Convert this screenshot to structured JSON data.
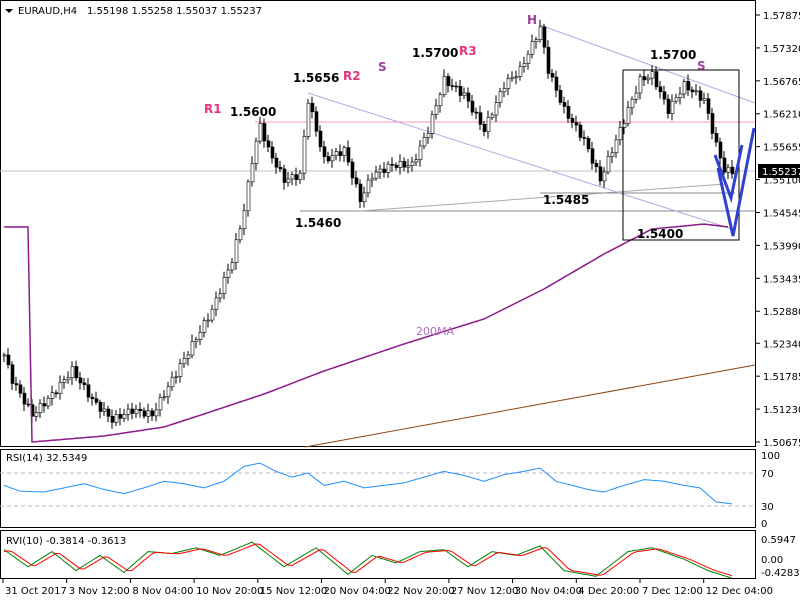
{
  "header": {
    "symbol": "EURAUD,H4",
    "ohlc": "1.55198 1.55258 1.55037 1.55237"
  },
  "rsi": {
    "label": "RSI(14) 32.5349",
    "levels": [
      "100",
      "70",
      "30",
      "0"
    ]
  },
  "rvi": {
    "label": "RVI(10) -0.3814 -0.3613",
    "levels": [
      "0.5947",
      "0.00",
      "-0.4283"
    ]
  },
  "annotations": {
    "r1": "R1",
    "p1": "1.5600",
    "p2": "1.5656",
    "r2": "R2",
    "s1": "S",
    "p3": "1.5700",
    "r3": "R3",
    "h": "H",
    "p4": "1.5700",
    "s2": "S",
    "p5": "1.5485",
    "p6": "1.5460",
    "p7": "1.5400",
    "ma": "200MA"
  },
  "colors": {
    "pink": "#e8337a",
    "purple": "#a040a0",
    "ma": "#8b1a8b",
    "blue": "#3040d0",
    "rsi": "#1e90ff",
    "rvi_main": "#008000",
    "rvi_signal": "#ff0000",
    "trend": "#8b4513"
  },
  "chart_data": {
    "type": "candlestick",
    "title": "EURAUD,H4",
    "current_price": "1.55237",
    "y_ticks": [
      "1.57875",
      "1.57320",
      "1.56765",
      "1.56210",
      "1.55655",
      "1.55100",
      "1.54545",
      "1.53990",
      "1.53435",
      "1.52880",
      "1.52340",
      "1.51785",
      "1.51230",
      "1.50675"
    ],
    "ylim": [
      1.50675,
      1.57875
    ],
    "x_ticks": [
      "31 Oct 2017",
      "3 Nov 12:00",
      "8 Nov 04:00",
      "10 Nov 20:00",
      "15 Nov 12:00",
      "20 Nov 04:00",
      "22 Nov 20:00",
      "27 Nov 12:00",
      "30 Nov 04:00",
      "4 Dec 20:00",
      "7 Dec 12:00",
      "12 Dec 04:00"
    ],
    "close_keypoints": [
      [
        0,
        1.52143
      ],
      [
        2,
        1.51721
      ],
      [
        7,
        1.51131
      ],
      [
        12,
        1.51468
      ],
      [
        17,
        1.5189
      ],
      [
        22,
        1.51384
      ],
      [
        27,
        1.51047
      ],
      [
        32,
        1.51215
      ],
      [
        37,
        1.51131
      ],
      [
        42,
        1.51721
      ],
      [
        47,
        1.52311
      ],
      [
        52,
        1.52901
      ],
      [
        57,
        1.53744
      ],
      [
        60,
        1.54587
      ],
      [
        62,
        1.5543
      ],
      [
        64,
        1.5602
      ],
      [
        66,
        1.55599
      ],
      [
        70,
        1.55093
      ],
      [
        74,
        1.55177
      ],
      [
        76,
        1.56442
      ],
      [
        80,
        1.5543
      ],
      [
        85,
        1.55599
      ],
      [
        89,
        1.54756
      ],
      [
        92,
        1.55177
      ],
      [
        97,
        1.55346
      ],
      [
        102,
        1.55346
      ],
      [
        106,
        1.55936
      ],
      [
        110,
        1.56779
      ],
      [
        115,
        1.56526
      ],
      [
        120,
        1.55936
      ],
      [
        125,
        1.56695
      ],
      [
        129,
        1.56948
      ],
      [
        134,
        1.57656
      ],
      [
        136,
        1.56948
      ],
      [
        140,
        1.56273
      ],
      [
        145,
        1.55767
      ],
      [
        149,
        1.55093
      ],
      [
        152,
        1.55599
      ],
      [
        155,
        1.56105
      ],
      [
        159,
        1.56779
      ],
      [
        162,
        1.56863
      ],
      [
        166,
        1.56273
      ],
      [
        170,
        1.56695
      ],
      [
        175,
        1.56442
      ],
      [
        178,
        1.55683
      ],
      [
        180,
        1.55262
      ],
      [
        182,
        1.55237
      ]
    ],
    "ma200_keypoints": [
      [
        7,
        1.50675
      ],
      [
        25,
        1.50776
      ],
      [
        40,
        1.50928
      ],
      [
        50,
        1.51147
      ],
      [
        65,
        1.51484
      ],
      [
        80,
        1.51872
      ],
      [
        100,
        1.52328
      ],
      [
        120,
        1.52749
      ],
      [
        135,
        1.53255
      ],
      [
        150,
        1.53845
      ],
      [
        162,
        1.54266
      ],
      [
        175,
        1.5435
      ],
      [
        181,
        1.543
      ]
    ],
    "rsi_keypoints": [
      [
        0,
        55
      ],
      [
        4,
        48
      ],
      [
        10,
        47
      ],
      [
        15,
        52
      ],
      [
        20,
        57
      ],
      [
        25,
        50
      ],
      [
        30,
        45
      ],
      [
        35,
        52
      ],
      [
        40,
        60
      ],
      [
        45,
        57
      ],
      [
        50,
        52
      ],
      [
        55,
        60
      ],
      [
        60,
        78
      ],
      [
        64,
        82
      ],
      [
        68,
        72
      ],
      [
        72,
        65
      ],
      [
        76,
        70
      ],
      [
        80,
        55
      ],
      [
        85,
        60
      ],
      [
        90,
        52
      ],
      [
        95,
        55
      ],
      [
        100,
        58
      ],
      [
        105,
        65
      ],
      [
        110,
        72
      ],
      [
        115,
        67
      ],
      [
        120,
        60
      ],
      [
        125,
        68
      ],
      [
        130,
        72
      ],
      [
        134,
        76
      ],
      [
        138,
        60
      ],
      [
        142,
        55
      ],
      [
        146,
        50
      ],
      [
        150,
        47
      ],
      [
        155,
        55
      ],
      [
        160,
        62
      ],
      [
        165,
        60
      ],
      [
        170,
        55
      ],
      [
        174,
        52
      ],
      [
        178,
        35
      ],
      [
        182,
        32.5
      ]
    ],
    "rvi_main_keypoints": [
      [
        0,
        0.35
      ],
      [
        6,
        -0.1
      ],
      [
        12,
        0.3
      ],
      [
        18,
        -0.2
      ],
      [
        24,
        0.2
      ],
      [
        30,
        -0.25
      ],
      [
        36,
        0.3
      ],
      [
        42,
        0.25
      ],
      [
        48,
        0.4
      ],
      [
        54,
        0.2
      ],
      [
        62,
        0.55
      ],
      [
        70,
        -0.1
      ],
      [
        78,
        0.4
      ],
      [
        86,
        -0.3
      ],
      [
        92,
        0.2
      ],
      [
        98,
        0
      ],
      [
        104,
        0.3
      ],
      [
        110,
        0.35
      ],
      [
        116,
        -0.1
      ],
      [
        122,
        0.3
      ],
      [
        128,
        0.2
      ],
      [
        134,
        0.45
      ],
      [
        140,
        -0.2
      ],
      [
        148,
        -0.35
      ],
      [
        156,
        0.3
      ],
      [
        162,
        0.4
      ],
      [
        170,
        0.1
      ],
      [
        176,
        -0.2
      ],
      [
        182,
        -0.4
      ]
    ]
  }
}
